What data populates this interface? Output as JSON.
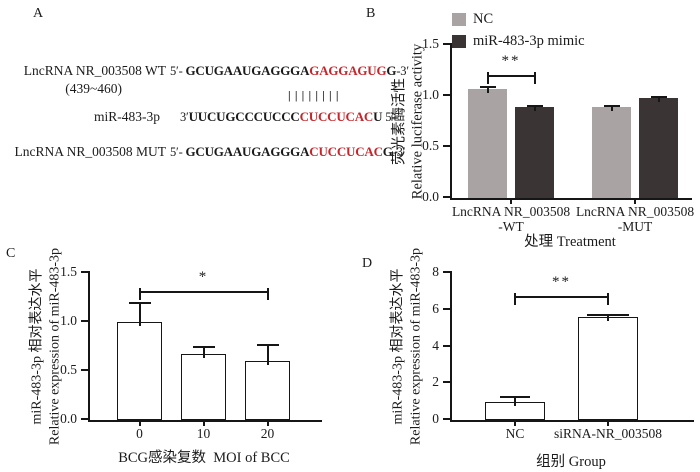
{
  "panels": {
    "A": {
      "label": "A",
      "red_color": "#c6262b",
      "wt_label": "LncRNA NR_003508 WT",
      "range": "(439~460)",
      "mir_label": "miR-483-3p",
      "mut_label": "LncRNA NR_003508 MUT",
      "pairing": "||||||||",
      "wt": {
        "pre": "5′- ",
        "black": "GCUGAAUGAGGGA",
        "red": "GAGGAGUG",
        "black2": "G",
        "post": "-3′"
      },
      "mir": {
        "pre": "3′",
        "black": "UUCUGCCCUCCC",
        "red": "CUCCUCAC",
        "black2": "U",
        "post": " 5′"
      },
      "mut": {
        "pre": "5′- ",
        "black": "GCUGAAUGAGGGA",
        "red": "CUCCUCAC",
        "black2": "G",
        "post": "-3′"
      }
    },
    "B": {
      "label": "B"
    },
    "C": {
      "label": "C"
    },
    "D": {
      "label": "D"
    }
  },
  "chart_data": [
    {
      "panel": "B",
      "type": "bar",
      "title": "",
      "categories": [
        "LncRNA NR_003508\n-WT",
        "LncRNA NR_003508\n-MUT"
      ],
      "series": [
        {
          "name": "NC",
          "color": "#a9a3a3",
          "values": [
            1.07,
            0.89
          ],
          "errors": [
            0.02,
            0.012
          ]
        },
        {
          "name": "miR-483-3p mimic",
          "color": "#3a3435",
          "values": [
            0.89,
            0.98
          ],
          "errors": [
            0.012,
            0.015
          ]
        }
      ],
      "ylabel_zh": "荧光素酶活性",
      "ylabel_en": "Relative luciferase activity",
      "xlabel": "处理 Treatment",
      "yticks": [
        "0.0",
        "0.5",
        "1.0",
        "1.5"
      ],
      "ylim": [
        0,
        1.5
      ],
      "legend_position": "top",
      "grid": false,
      "significance": [
        {
          "from": 0,
          "to": 1,
          "y": 1.2,
          "label": "**"
        }
      ]
    },
    {
      "panel": "C",
      "type": "bar",
      "title": "",
      "categories": [
        "0",
        "10",
        "20"
      ],
      "values": [
        1.0,
        0.67,
        0.6
      ],
      "errors": [
        0.19,
        0.08,
        0.17
      ],
      "bar_fill": "#ffffff",
      "ylabel_zh": "miR-483-3p 相对表达水平",
      "ylabel_en": "Relative expression of miR-483-3p",
      "xlabel": "BCG感染复数  MOI of BCC",
      "yticks": [
        "0.0",
        "0.5",
        "1.0",
        "1.5"
      ],
      "ylim": [
        0,
        1.5
      ],
      "grid": false,
      "significance": [
        {
          "from": 0,
          "to": 2,
          "y": 1.31,
          "label": "*"
        }
      ]
    },
    {
      "panel": "D",
      "type": "bar",
      "title": "",
      "categories": [
        "NC",
        "siRNA-NR_003508"
      ],
      "values": [
        1.0,
        5.62
      ],
      "errors": [
        0.25,
        0.12
      ],
      "bar_fill": "#ffffff",
      "ylabel_zh": "miR-483-3p 相对表达水平",
      "ylabel_en": "Relative expression of miR-483-3p",
      "xlabel": "组别 Group",
      "yticks": [
        "0",
        "2",
        "4",
        "6",
        "8"
      ],
      "ylim": [
        0,
        8
      ],
      "grid": false,
      "significance": [
        {
          "from": 0,
          "to": 1,
          "y": 6.7,
          "label": "**"
        }
      ]
    }
  ]
}
